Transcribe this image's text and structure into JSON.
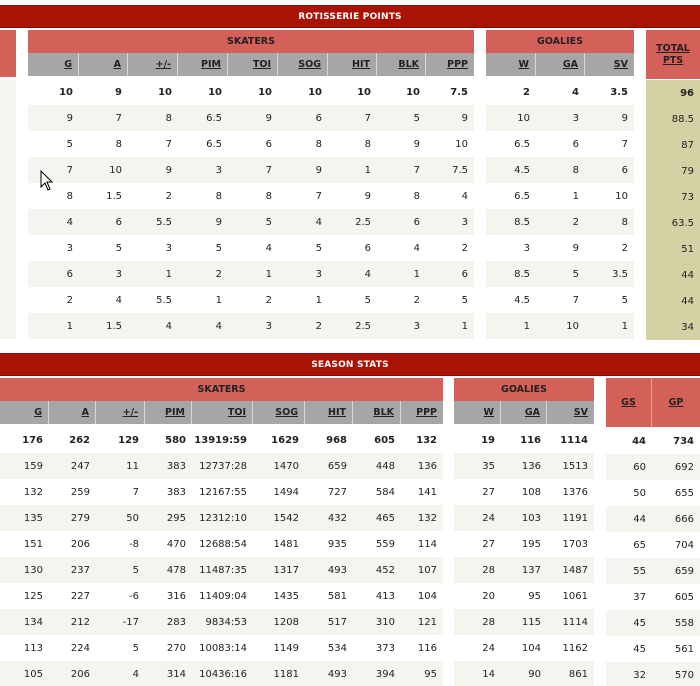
{
  "roto": {
    "title": "ROTISSERIE POINTS",
    "skaters_label": "SKATERS",
    "goalies_label": "GOALIES",
    "total_label": "TOTAL PTS",
    "skater_cols": [
      "G",
      "A",
      "+/-",
      "PIM",
      "TOI",
      "SOG",
      "HIT",
      "BLK",
      "PPP"
    ],
    "goalie_cols": [
      "W",
      "GA",
      "SV"
    ],
    "rows": [
      {
        "sk": [
          "10",
          "9",
          "10",
          "10",
          "10",
          "10",
          "10",
          "10",
          "7.5"
        ],
        "go": [
          "2",
          "4",
          "3.5"
        ],
        "total": "96"
      },
      {
        "sk": [
          "9",
          "7",
          "8",
          "6.5",
          "9",
          "6",
          "7",
          "5",
          "9"
        ],
        "go": [
          "10",
          "3",
          "9"
        ],
        "total": "88.5"
      },
      {
        "sk": [
          "5",
          "8",
          "7",
          "6.5",
          "6",
          "8",
          "8",
          "9",
          "10"
        ],
        "go": [
          "6.5",
          "6",
          "7"
        ],
        "total": "87"
      },
      {
        "sk": [
          "7",
          "10",
          "9",
          "3",
          "7",
          "9",
          "1",
          "7",
          "7.5"
        ],
        "go": [
          "4.5",
          "8",
          "6"
        ],
        "total": "79"
      },
      {
        "sk": [
          "8",
          "1.5",
          "2",
          "8",
          "8",
          "7",
          "9",
          "8",
          "4"
        ],
        "go": [
          "6.5",
          "1",
          "10"
        ],
        "total": "73"
      },
      {
        "sk": [
          "4",
          "6",
          "5.5",
          "9",
          "5",
          "4",
          "2.5",
          "6",
          "3"
        ],
        "go": [
          "8.5",
          "2",
          "8"
        ],
        "total": "63.5"
      },
      {
        "sk": [
          "3",
          "5",
          "3",
          "5",
          "4",
          "5",
          "6",
          "4",
          "2"
        ],
        "go": [
          "3",
          "9",
          "2"
        ],
        "total": "51"
      },
      {
        "sk": [
          "6",
          "3",
          "1",
          "2",
          "1",
          "3",
          "4",
          "1",
          "6"
        ],
        "go": [
          "8.5",
          "5",
          "3.5"
        ],
        "total": "44"
      },
      {
        "sk": [
          "2",
          "4",
          "5.5",
          "1",
          "2",
          "1",
          "5",
          "2",
          "5"
        ],
        "go": [
          "4.5",
          "7",
          "5"
        ],
        "total": "44"
      },
      {
        "sk": [
          "1",
          "1.5",
          "4",
          "4",
          "3",
          "2",
          "2.5",
          "3",
          "1"
        ],
        "go": [
          "1",
          "10",
          "1"
        ],
        "total": "34"
      }
    ]
  },
  "season": {
    "title": "SEASON STATS",
    "skaters_label": "SKATERS",
    "goalies_label": "GOALIES",
    "skater_cols": [
      "G",
      "A",
      "+/-",
      "PIM",
      "TOI",
      "SOG",
      "HIT",
      "BLK",
      "PPP"
    ],
    "goalie_cols": [
      "W",
      "GA",
      "SV"
    ],
    "gs_label": "GS",
    "gp_label": "GP",
    "rows": [
      {
        "sk": [
          "176",
          "262",
          "129",
          "580",
          "13919:59",
          "1629",
          "968",
          "605",
          "132"
        ],
        "go": [
          "19",
          "116",
          "1114"
        ],
        "gs": "44",
        "gp": "734"
      },
      {
        "sk": [
          "159",
          "247",
          "11",
          "383",
          "12737:28",
          "1470",
          "659",
          "448",
          "136"
        ],
        "go": [
          "35",
          "136",
          "1513"
        ],
        "gs": "60",
        "gp": "692"
      },
      {
        "sk": [
          "132",
          "259",
          "7",
          "383",
          "12167:55",
          "1494",
          "727",
          "584",
          "141"
        ],
        "go": [
          "27",
          "108",
          "1376"
        ],
        "gs": "50",
        "gp": "655"
      },
      {
        "sk": [
          "135",
          "279",
          "50",
          "295",
          "12312:10",
          "1542",
          "432",
          "465",
          "132"
        ],
        "go": [
          "24",
          "103",
          "1191"
        ],
        "gs": "44",
        "gp": "666"
      },
      {
        "sk": [
          "151",
          "206",
          "-8",
          "470",
          "12688:54",
          "1481",
          "935",
          "559",
          "114"
        ],
        "go": [
          "27",
          "195",
          "1703"
        ],
        "gs": "65",
        "gp": "704"
      },
      {
        "sk": [
          "130",
          "237",
          "5",
          "478",
          "11487:35",
          "1317",
          "493",
          "452",
          "107"
        ],
        "go": [
          "28",
          "137",
          "1487"
        ],
        "gs": "55",
        "gp": "659"
      },
      {
        "sk": [
          "125",
          "227",
          "-6",
          "316",
          "11409:04",
          "1435",
          "581",
          "413",
          "104"
        ],
        "go": [
          "20",
          "95",
          "1061"
        ],
        "gs": "37",
        "gp": "605"
      },
      {
        "sk": [
          "134",
          "212",
          "-17",
          "283",
          "9834:53",
          "1208",
          "517",
          "310",
          "121"
        ],
        "go": [
          "28",
          "115",
          "1114"
        ],
        "gs": "45",
        "gp": "558"
      },
      {
        "sk": [
          "113",
          "224",
          "5",
          "270",
          "10083:14",
          "1149",
          "534",
          "373",
          "116"
        ],
        "go": [
          "24",
          "104",
          "1162"
        ],
        "gs": "45",
        "gp": "561"
      },
      {
        "sk": [
          "105",
          "206",
          "4",
          "314",
          "10436:16",
          "1181",
          "493",
          "394",
          "95"
        ],
        "go": [
          "14",
          "90",
          "861"
        ],
        "gs": "32",
        "gp": "570"
      }
    ]
  },
  "icons": {
    "cursor": "mouse-pointer-icon"
  },
  "colors": {
    "section_bar": "#a81306",
    "group_header": "#d4605a",
    "column_header": "#a6a6a6",
    "total_cell": "#d4d2a5",
    "row_alt": "#f6f4ef"
  }
}
